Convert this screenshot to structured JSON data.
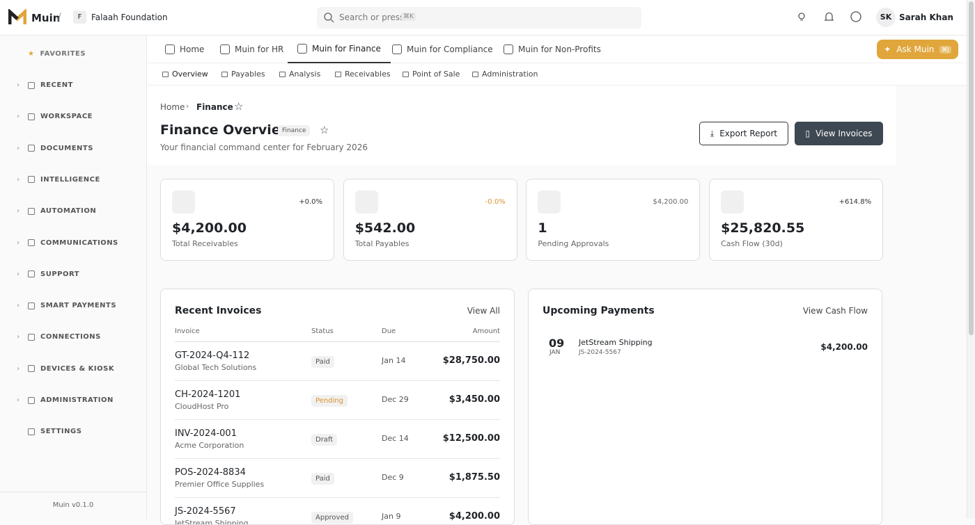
{
  "header": {
    "brand": "Muin",
    "separator": "/",
    "org_initial": "F",
    "org": "Falaah Foundation",
    "search": "Search or press",
    "shortcut": "⌘K",
    "user_initials": "SK",
    "user_name": "Sarah Khan"
  },
  "sidebar": {
    "favorites": "FAVORITES",
    "items": [
      "RECENT",
      "WORKSPACE",
      "DOCUMENTS",
      "INTELLIGENCE",
      "AUTOMATION",
      "COMMUNICATIONS",
      "SUPPORT",
      "SMART PAYMENTS",
      "CONNECTIONS",
      "DEVICES & KIOSK",
      "ADMINISTRATION",
      "SETTINGS"
    ],
    "version": "Muin v0.1.0"
  },
  "tabs": [
    "Home",
    "Muin for HR",
    "Muin for Finance",
    "Muin for Compliance",
    "Muin for Non-Profits"
  ],
  "ask": {
    "label": "Ask Muin",
    "kbd": "⌘J"
  },
  "subtabs": [
    "Overview",
    "Payables",
    "Analysis",
    "Receivables",
    "Point of Sale",
    "Administration"
  ],
  "breadcrumb": [
    "Home",
    "Finance"
  ],
  "page": {
    "title": "Finance Overview",
    "badge": "Finance",
    "subtitle": "Your financial command center for February 2026",
    "export": "Export Report",
    "view_invoices": "View Invoices"
  },
  "stats": [
    {
      "change": "+0.0%",
      "value": "$4,200.00",
      "label": "Total Receivables"
    },
    {
      "change": "-0.0%",
      "value": "$542.00",
      "label": "Total Payables"
    },
    {
      "change": "$4,200.00",
      "value": "1",
      "label": "Pending Approvals"
    },
    {
      "change": "+614.8%",
      "value": "$25,820.55",
      "label": "Cash Flow (30d)"
    }
  ],
  "invoices": {
    "title": "Recent Invoices",
    "view_all": "View All",
    "columns": [
      "Invoice",
      "Status",
      "Due",
      "Amount"
    ],
    "rows": [
      {
        "id": "GT-2024-Q4-112",
        "customer": "Global Tech Solutions",
        "status": "Paid",
        "due": "Jan 14",
        "amount": "$28,750.00"
      },
      {
        "id": "CH-2024-1201",
        "customer": "CloudHost Pro",
        "status": "Pending",
        "due": "Dec 29",
        "amount": "$3,450.00"
      },
      {
        "id": "INV-2024-001",
        "customer": "Acme Corporation",
        "status": "Draft",
        "due": "Dec 14",
        "amount": "$12,500.00"
      },
      {
        "id": "POS-2024-8834",
        "customer": "Premier Office Supplies",
        "status": "Paid",
        "due": "Dec 9",
        "amount": "$1,875.50"
      },
      {
        "id": "JS-2024-5567",
        "customer": "JetStream Shipping",
        "status": "Approved",
        "due": "Jan 9",
        "amount": "$4,200.00"
      }
    ]
  },
  "payments": {
    "title": "Upcoming Payments",
    "view": "View Cash Flow",
    "items": [
      {
        "day": "09",
        "month": "JAN",
        "name": "JetStream Shipping",
        "ref": "JS-2024-5567",
        "amount": "$4,200.00"
      }
    ]
  }
}
